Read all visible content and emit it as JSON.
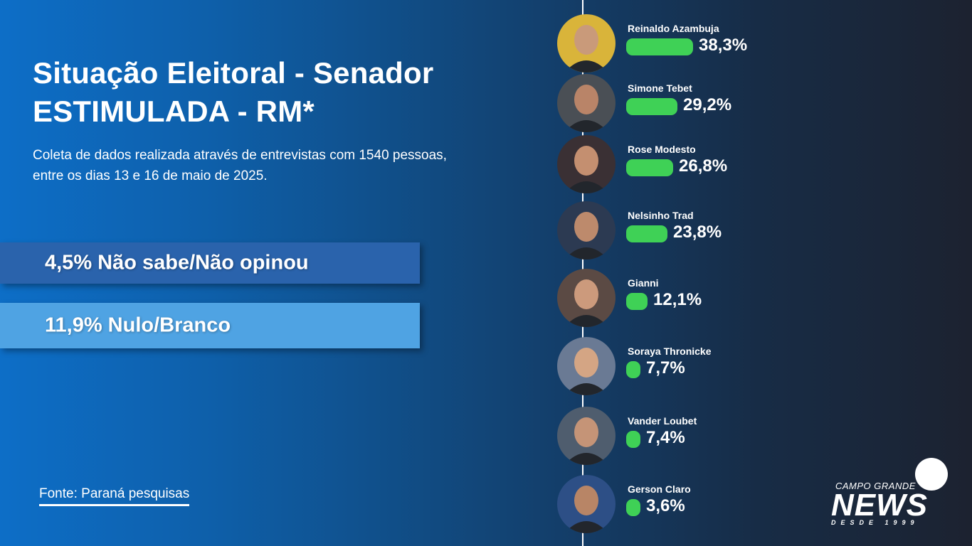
{
  "header": {
    "title_line1": "Situação Eleitoral - Senador",
    "title_line2": "ESTIMULADA - RM*",
    "desc_line1": "Coleta de dados realizada através de entrevistas com 1540 pessoas,",
    "desc_line2": "entre os dias 13 e 16 de maio de 2025."
  },
  "summary": {
    "nao_sabe": "4,5% Não sabe/Não opinou",
    "nulo_branco": "11,9% Nulo/Branco"
  },
  "source": "Fonte: Paraná pesquisas",
  "logo": {
    "top": "CAMPO GRANDE",
    "main": "NEWS",
    "sub": "DESDE 1999"
  },
  "colors": {
    "bar": "#3fd156",
    "nao_sabe_bar": "#2a63ac",
    "nulo_branco_bar": "#4fa3e3",
    "bg_start": "#0d6ec7",
    "bg_end": "#1c2230"
  },
  "chart_data": {
    "type": "bar",
    "categories": [
      "Reinaldo Azambuja",
      "Simone Tebet",
      "Rose Modesto",
      "Nelsinho Trad",
      "Gianni",
      "Soraya Thronicke",
      "Vander Loubet",
      "Gerson Claro"
    ],
    "values": [
      38.3,
      29.2,
      26.8,
      23.8,
      12.1,
      7.7,
      7.4,
      3.6
    ],
    "labels": [
      "38,3%",
      "29,2%",
      "26,8%",
      "23,8%",
      "12,1%",
      "7,7%",
      "7,4%",
      "3,6%"
    ],
    "title": "Situação Eleitoral - Senador ESTIMULADA - RM*",
    "xlabel": "",
    "ylabel": "",
    "orientation": "horizontal",
    "grid": false
  }
}
